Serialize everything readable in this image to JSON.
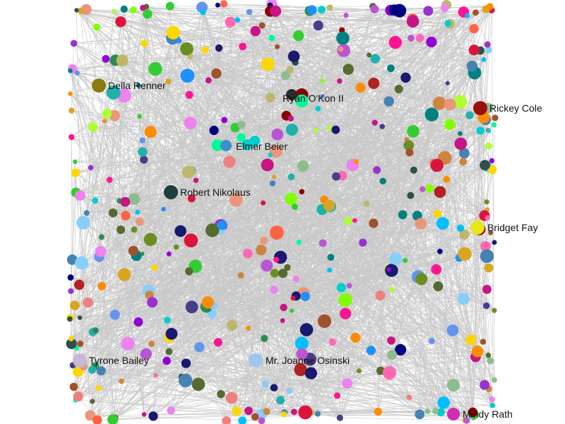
{
  "graph": {
    "type": "network",
    "edge_color": "#c8c8c8",
    "background": "#ffffff",
    "labeled_nodes": [
      {
        "name": "Della Renner",
        "color": "#8a7a10"
      },
      {
        "name": "Ryan O'Kon II",
        "color": "#2b2b2b"
      },
      {
        "name": "Rickey Cole",
        "color": "#9b0f0f"
      },
      {
        "name": "Elmer Beier",
        "color": "#3b8fd1"
      },
      {
        "name": "Robert Nikolaus",
        "color": "#1f3d3a"
      },
      {
        "name": "Bridget Fay",
        "color": "#e6e61a"
      },
      {
        "name": "Tyrone Bailey",
        "color": "#c6b9d8"
      },
      {
        "name": "Mr. Joanne Osinski",
        "color": "#9fc6ef"
      },
      {
        "name": "Mindy Rath",
        "color": "#d12bb5"
      }
    ]
  }
}
